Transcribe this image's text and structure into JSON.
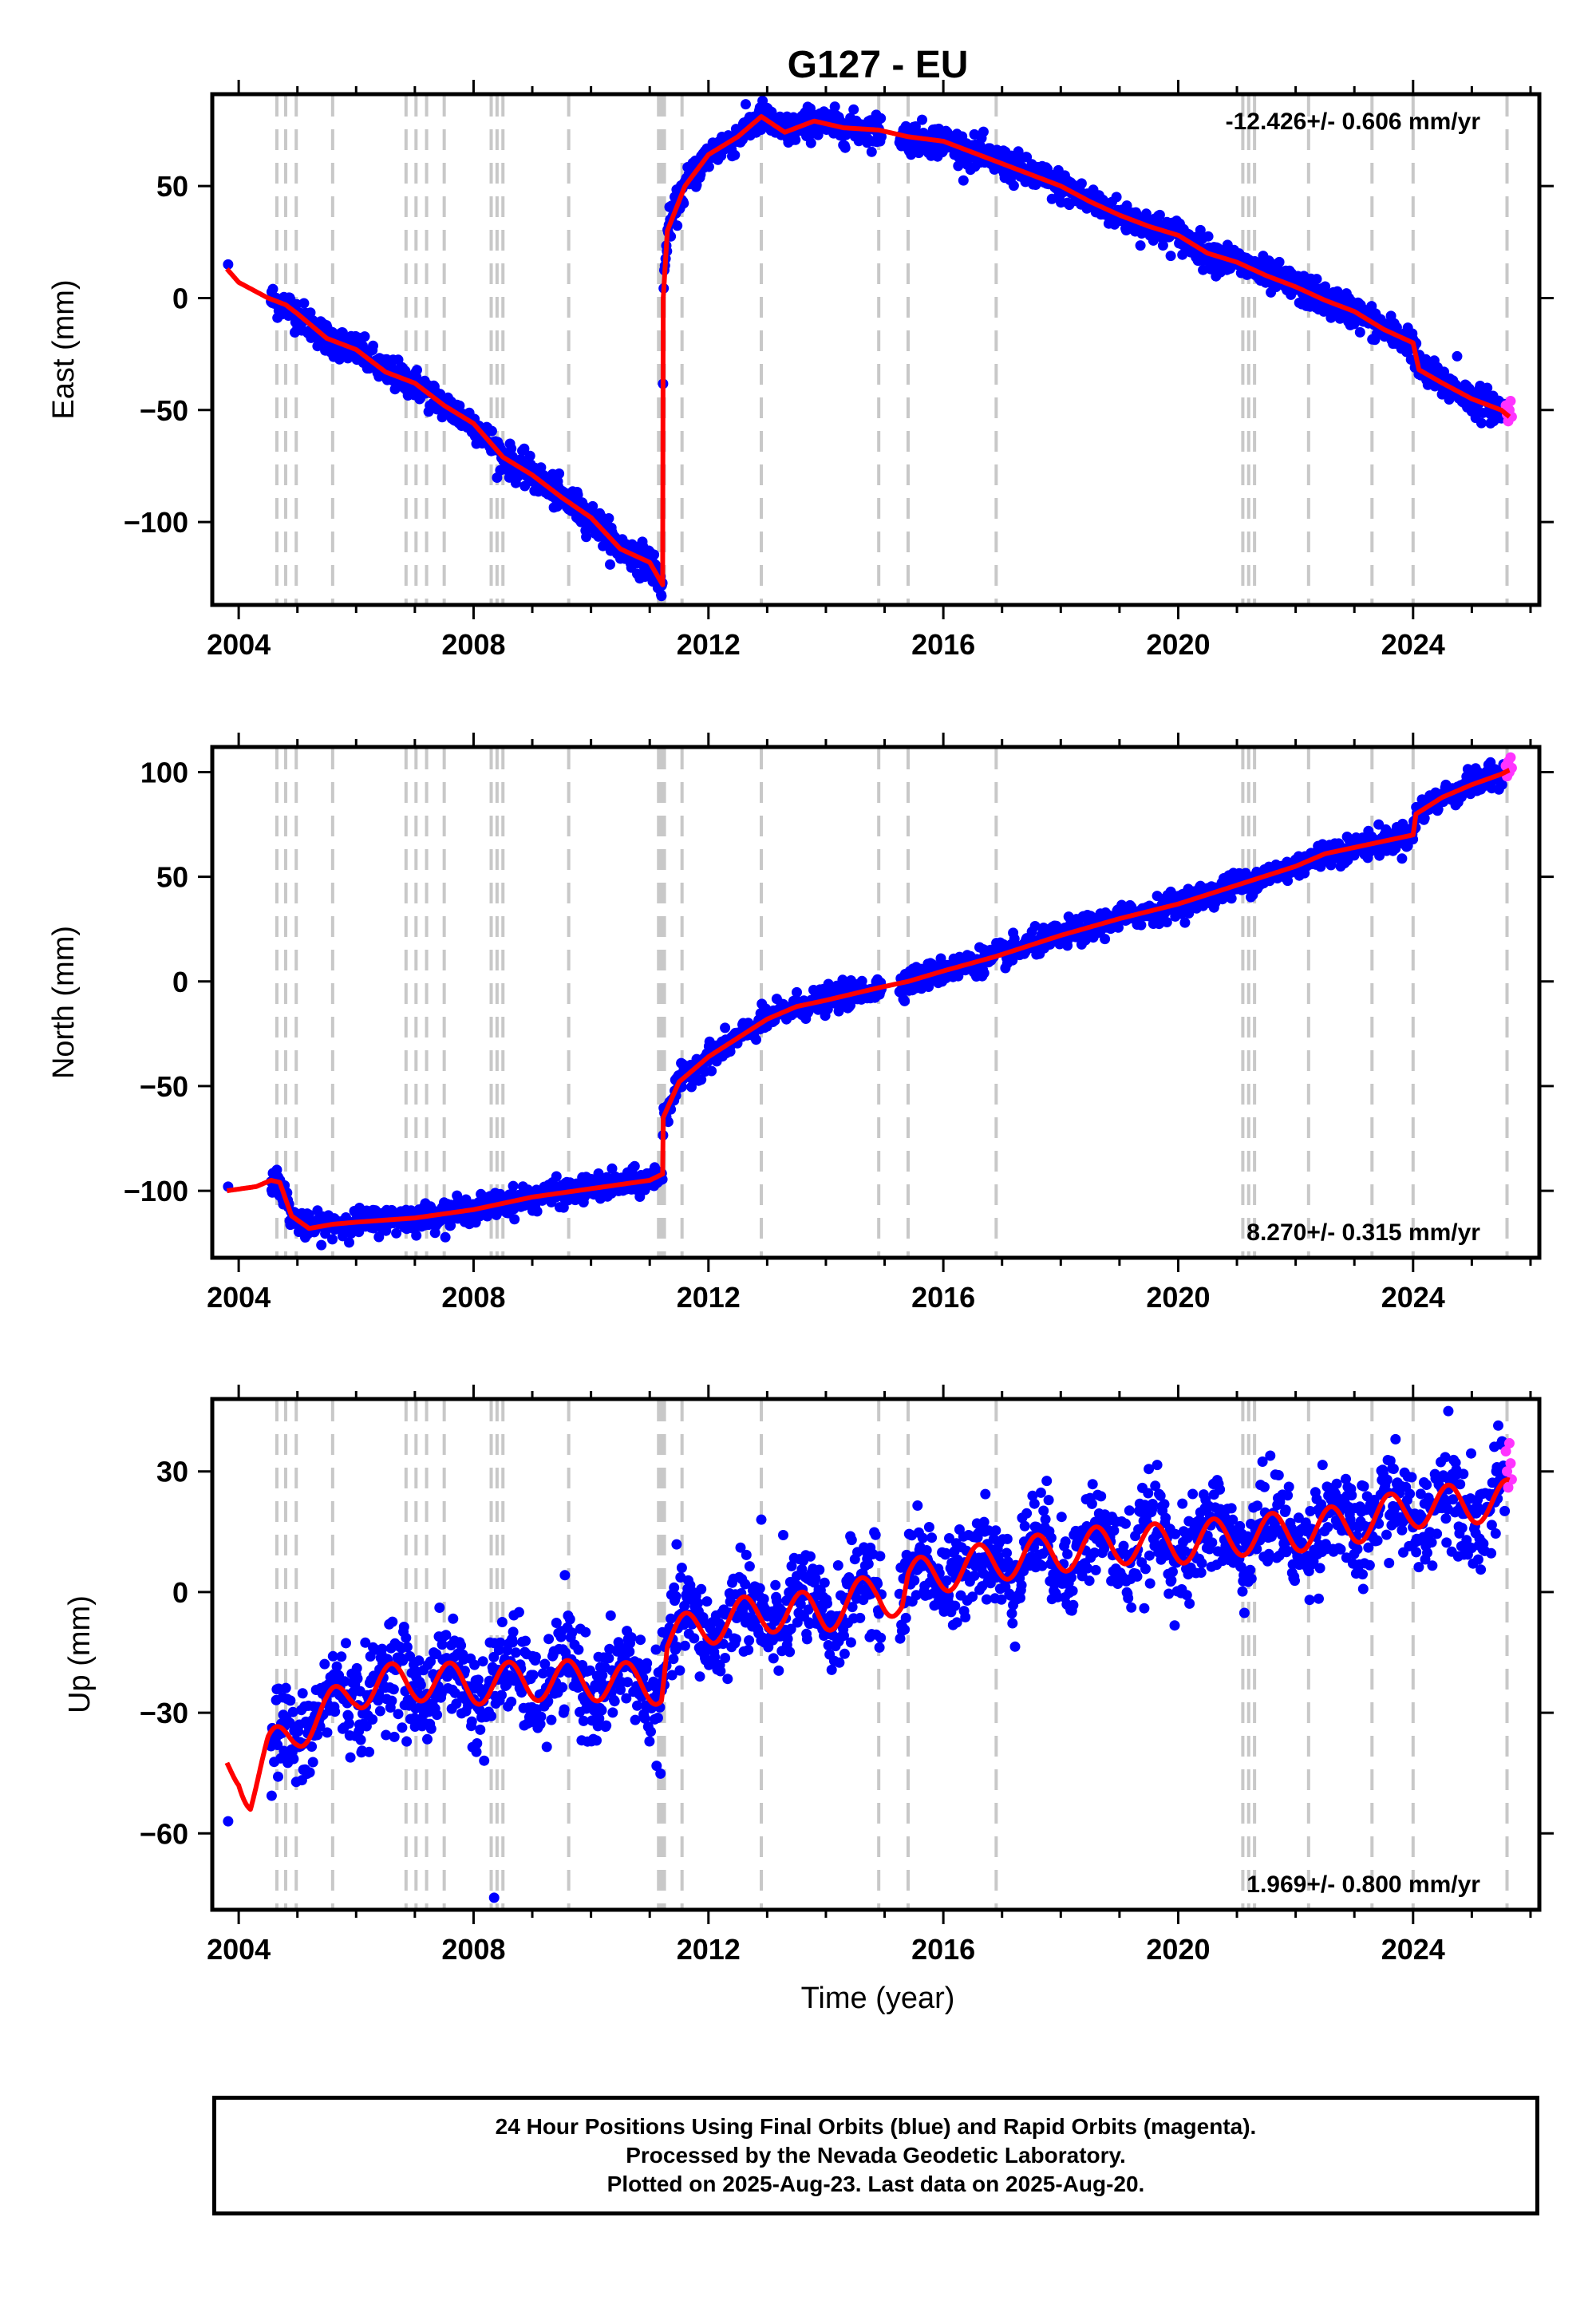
{
  "title": "G127 - EU",
  "colors": {
    "final": "#0000ff",
    "rapid": "#ff33ff",
    "model": "#ff0000",
    "steps": "#c8c8c8"
  },
  "xlabel": "Time (year)",
  "x_ticks": [
    "2004",
    "2008",
    "2012",
    "2016",
    "2020",
    "2024"
  ],
  "step_epochs": [
    2004.65,
    2004.8,
    2004.98,
    2005.6,
    2006.85,
    2007.02,
    2007.2,
    2007.5,
    2008.3,
    2008.4,
    2008.5,
    2009.62,
    2011.15,
    2011.2,
    2011.25,
    2011.55,
    2012.9,
    2014.9,
    2015.4,
    2016.9,
    2021.1,
    2021.2,
    2021.3,
    2022.22,
    2023.3,
    2024.0,
    2025.6
  ],
  "footer": {
    "line1": "24 Hour Positions Using Final Orbits (blue) and Rapid Orbits (magenta).",
    "line2": "Processed by the Nevada Geodetic Laboratory.",
    "line3": "Plotted on 2025-Aug-23. Last data on 2025-Aug-20."
  },
  "chart_data": [
    {
      "type": "scatter",
      "name": "east",
      "ylabel": "East (mm)",
      "rate_text": "-12.426+/- 0.606 mm/yr",
      "xlim": [
        2003.55,
        2026.15
      ],
      "ylim": [
        -137,
        91
      ],
      "yticks": [
        50,
        0,
        -50,
        -100
      ],
      "ytick_labels": [
        "50",
        "0",
        "−50",
        "−100"
      ],
      "noise": 3.5,
      "model_knots": [
        [
          2003.8,
          13
        ],
        [
          2004.0,
          7
        ],
        [
          2004.5,
          0
        ],
        [
          2004.8,
          -3
        ],
        [
          2005.0,
          -7
        ],
        [
          2005.5,
          -18
        ],
        [
          2006.0,
          -23
        ],
        [
          2006.5,
          -33
        ],
        [
          2007.0,
          -38
        ],
        [
          2007.5,
          -48
        ],
        [
          2008.0,
          -56
        ],
        [
          2008.5,
          -71
        ],
        [
          2009.0,
          -79
        ],
        [
          2009.5,
          -89
        ],
        [
          2010.0,
          -98
        ],
        [
          2010.5,
          -112
        ],
        [
          2011.0,
          -118
        ],
        [
          2011.22,
          -128
        ],
        [
          2011.23,
          0
        ],
        [
          2011.3,
          30
        ],
        [
          2011.6,
          50
        ],
        [
          2012.0,
          64
        ],
        [
          2012.5,
          72
        ],
        [
          2012.9,
          81
        ],
        [
          2013.3,
          74
        ],
        [
          2013.8,
          79
        ],
        [
          2014.3,
          76
        ],
        [
          2014.9,
          75
        ],
        [
          2015.4,
          72
        ],
        [
          2016.0,
          70
        ],
        [
          2016.9,
          61
        ],
        [
          2017.5,
          55
        ],
        [
          2018.0,
          50
        ],
        [
          2018.5,
          43
        ],
        [
          2019.0,
          37
        ],
        [
          2019.5,
          32
        ],
        [
          2020.0,
          28
        ],
        [
          2020.5,
          20
        ],
        [
          2021.0,
          16
        ],
        [
          2021.5,
          10
        ],
        [
          2022.0,
          5
        ],
        [
          2022.5,
          -1
        ],
        [
          2023.0,
          -6
        ],
        [
          2023.5,
          -14
        ],
        [
          2024.0,
          -20
        ],
        [
          2024.1,
          -32
        ],
        [
          2024.5,
          -38
        ],
        [
          2025.0,
          -45
        ],
        [
          2025.5,
          -50
        ],
        [
          2025.64,
          -53
        ]
      ],
      "isolated_points": [
        [
          2003.82,
          15
        ],
        [
          2011.2,
          -133
        ],
        [
          2024.75,
          -26
        ]
      ],
      "rapid_points": [
        [
          2025.58,
          -48
        ],
        [
          2025.6,
          -52
        ],
        [
          2025.62,
          -55
        ],
        [
          2025.64,
          -50
        ],
        [
          2025.66,
          -46
        ],
        [
          2025.68,
          -53
        ]
      ]
    },
    {
      "type": "scatter",
      "name": "north",
      "ylabel": "North (mm)",
      "rate_text": "8.270+/- 0.315 mm/yr",
      "xlim": [
        2003.55,
        2026.15
      ],
      "ylim": [
        -132,
        112
      ],
      "yticks": [
        100,
        50,
        0,
        -50,
        -100
      ],
      "ytick_labels": [
        "100",
        "50",
        "0",
        "−50",
        "−100"
      ],
      "noise": 3,
      "model_knots": [
        [
          2003.8,
          -100
        ],
        [
          2004.3,
          -98
        ],
        [
          2004.55,
          -95
        ],
        [
          2004.7,
          -96
        ],
        [
          2004.9,
          -112
        ],
        [
          2005.2,
          -118
        ],
        [
          2005.6,
          -116
        ],
        [
          2006.0,
          -115
        ],
        [
          2007.0,
          -113
        ],
        [
          2008.0,
          -109
        ],
        [
          2009.0,
          -103
        ],
        [
          2010.0,
          -99
        ],
        [
          2011.0,
          -95
        ],
        [
          2011.22,
          -92
        ],
        [
          2011.23,
          -65
        ],
        [
          2011.5,
          -48
        ],
        [
          2012.0,
          -36
        ],
        [
          2012.5,
          -27
        ],
        [
          2013.0,
          -18
        ],
        [
          2013.5,
          -12
        ],
        [
          2014.0,
          -9
        ],
        [
          2014.9,
          -3
        ],
        [
          2015.4,
          0
        ],
        [
          2016.0,
          5
        ],
        [
          2016.9,
          12
        ],
        [
          2018.0,
          22
        ],
        [
          2019.0,
          30
        ],
        [
          2020.0,
          37
        ],
        [
          2021.0,
          46
        ],
        [
          2022.0,
          55
        ],
        [
          2022.5,
          61
        ],
        [
          2023.0,
          64
        ],
        [
          2023.5,
          67
        ],
        [
          2024.0,
          70
        ],
        [
          2024.05,
          80
        ],
        [
          2024.5,
          88
        ],
        [
          2025.0,
          94
        ],
        [
          2025.5,
          99
        ],
        [
          2025.64,
          101
        ]
      ],
      "isolated_points": [
        [
          2003.82,
          -98
        ],
        [
          2004.65,
          -90
        ]
      ],
      "rapid_points": [
        [
          2025.58,
          103
        ],
        [
          2025.6,
          98
        ],
        [
          2025.62,
          105
        ],
        [
          2025.64,
          100
        ],
        [
          2025.66,
          107
        ],
        [
          2025.68,
          102
        ]
      ]
    },
    {
      "type": "scatter",
      "name": "up",
      "ylabel": "Up (mm)",
      "xlabel": "Time (year)",
      "rate_text": "1.969+/- 0.800 mm/yr",
      "xlim": [
        2003.55,
        2026.15
      ],
      "ylim": [
        -79,
        48
      ],
      "yticks": [
        30,
        0,
        -30,
        -60
      ],
      "ytick_labels": [
        "30",
        "0",
        "−30",
        "−60"
      ],
      "noise": 6,
      "seasonal_amplitude": 5,
      "model_knots": [
        [
          2003.8,
          -44
        ],
        [
          2004.0,
          -44
        ],
        [
          2004.2,
          -50
        ],
        [
          2004.5,
          -40
        ],
        [
          2005.0,
          -34
        ],
        [
          2005.5,
          -30
        ],
        [
          2006.0,
          -24
        ],
        [
          2007.0,
          -22
        ],
        [
          2008.0,
          -23
        ],
        [
          2009.0,
          -22
        ],
        [
          2010.0,
          -22
        ],
        [
          2011.2,
          -23
        ],
        [
          2011.3,
          -12
        ],
        [
          2012.0,
          -8
        ],
        [
          2013.0,
          -5
        ],
        [
          2014.0,
          -5
        ],
        [
          2014.5,
          -2
        ],
        [
          2014.9,
          0
        ],
        [
          2015.3,
          -2
        ],
        [
          2015.4,
          3
        ],
        [
          2016.0,
          5
        ],
        [
          2017.0,
          8
        ],
        [
          2018.0,
          10
        ],
        [
          2019.0,
          12
        ],
        [
          2020.0,
          12
        ],
        [
          2021.0,
          14
        ],
        [
          2022.0,
          15
        ],
        [
          2023.0,
          17
        ],
        [
          2024.0,
          21
        ],
        [
          2025.0,
          22
        ],
        [
          2025.64,
          23
        ]
      ],
      "isolated_points": [
        [
          2003.82,
          -57
        ],
        [
          2008.35,
          -76
        ],
        [
          2012.9,
          18
        ],
        [
          2024.6,
          45
        ]
      ],
      "rapid_points": [
        [
          2025.58,
          35
        ],
        [
          2025.6,
          30
        ],
        [
          2025.62,
          26
        ],
        [
          2025.64,
          37
        ],
        [
          2025.66,
          32
        ],
        [
          2025.68,
          28
        ]
      ]
    }
  ]
}
